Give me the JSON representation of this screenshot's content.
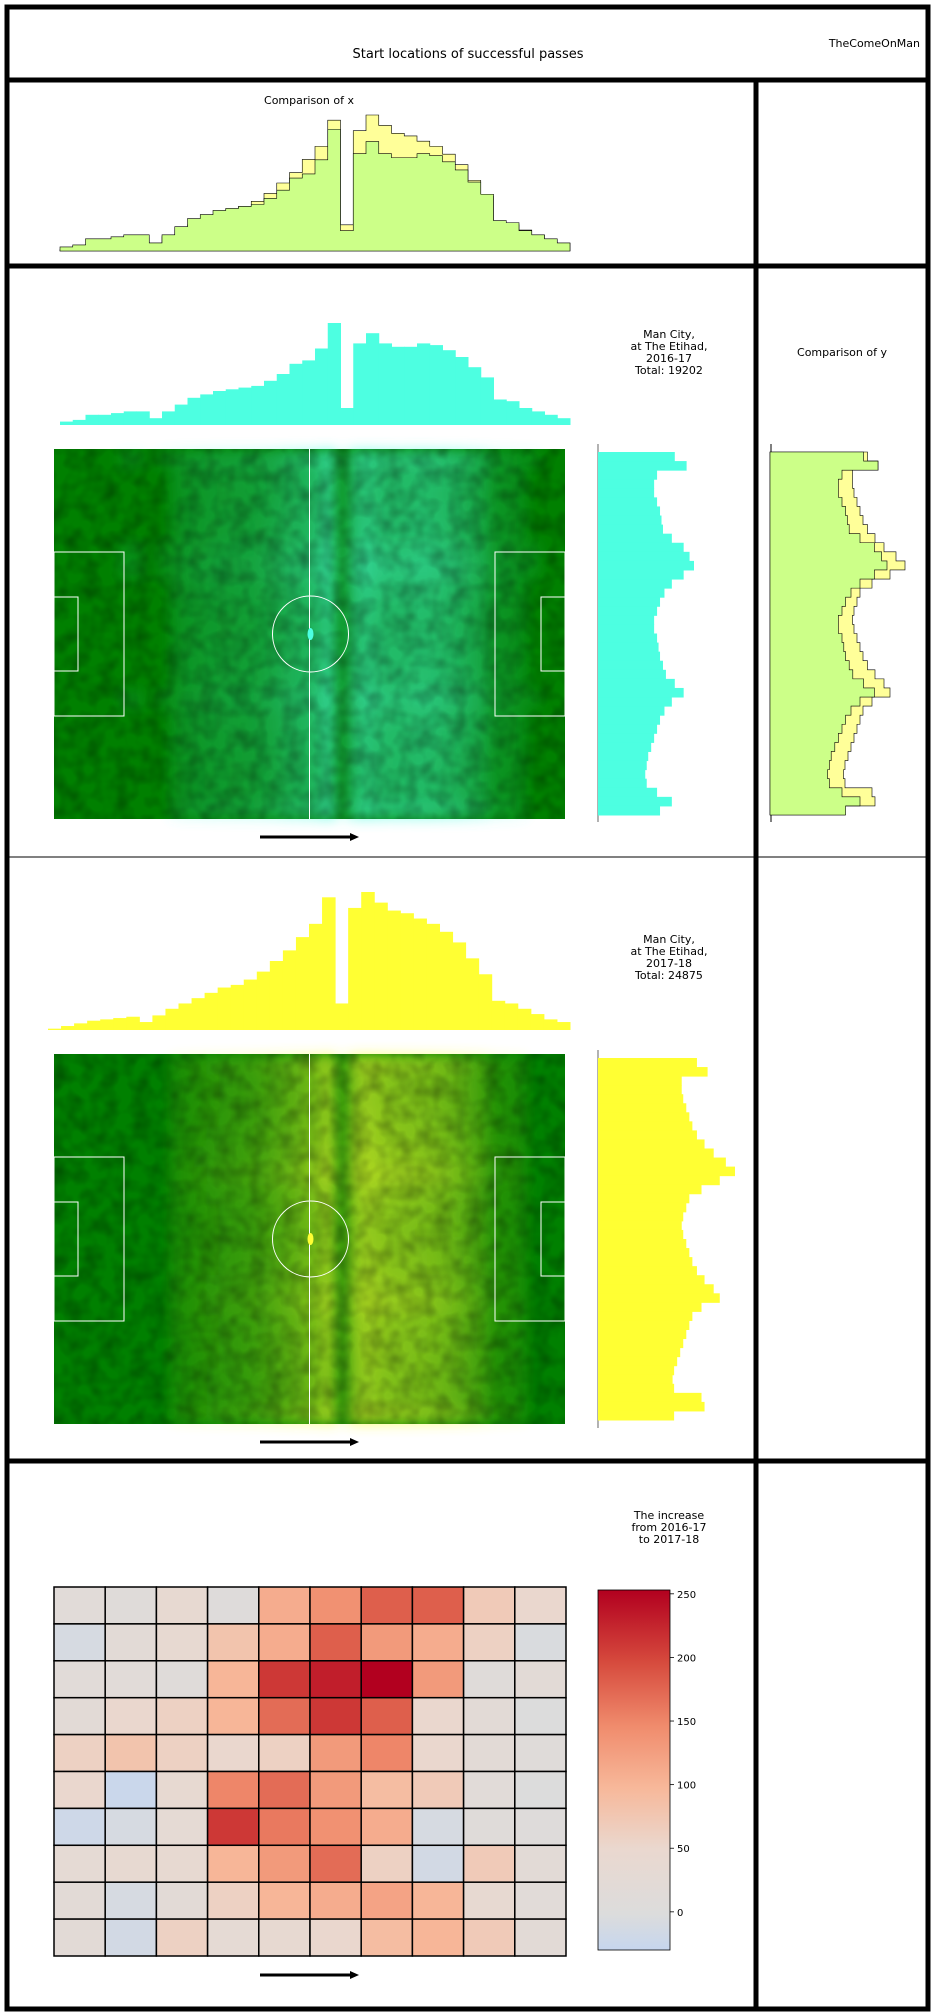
{
  "header": {
    "title": "Start locations of successful passes",
    "author": "TheComeOnMan"
  },
  "colors": {
    "season_2016_17": "#4dffe1",
    "season_2017_18": "#ffff33",
    "overlap": "#ccff88",
    "comparison_light_yellow": "#ffff99",
    "pitch": "#008000",
    "pitch_lines": "#ffffff"
  },
  "chart_data": [
    {
      "type": "area",
      "title": "Comparison of x",
      "description_series": [
        "Man City, at The Etihad, 2016-17",
        "Man City, at The Etihad, 2017-18"
      ],
      "bins": 40,
      "series": [
        {
          "values": [
            2,
            3,
            6,
            6,
            7,
            8,
            8,
            4,
            8,
            12,
            16,
            18,
            20,
            21,
            22,
            23,
            26,
            30,
            36,
            38,
            45,
            60,
            10,
            48,
            54,
            48,
            46,
            46,
            48,
            47,
            44,
            40,
            34,
            28,
            15,
            14,
            10,
            8,
            6,
            4
          ]
        },
        {
          "values": [
            2,
            3,
            5,
            6,
            6,
            8,
            9,
            5,
            9,
            13,
            17,
            19,
            21,
            24,
            26,
            30,
            34,
            38,
            46,
            52,
            60,
            72,
            12,
            62,
            72,
            64,
            62,
            60,
            56,
            54,
            50,
            44,
            38,
            30,
            18,
            16,
            12,
            10,
            7,
            5
          ]
        }
      ]
    },
    {
      "type": "area",
      "title": "Comparison of y",
      "bins": 40,
      "orientation": "horizontal"
    },
    {
      "type": "heatmap",
      "label": "Man City,\nat The Etihad,\n2016-17\nTotal: 19202",
      "label_lines": [
        "Man City,",
        "at The Etihad,",
        "2016-17",
        "Total: 19202"
      ],
      "x_hist": [
        2,
        3,
        6,
        6,
        7,
        8,
        8,
        4,
        8,
        12,
        16,
        18,
        20,
        21,
        22,
        23,
        26,
        30,
        36,
        38,
        45,
        60,
        10,
        48,
        54,
        48,
        46,
        46,
        48,
        47,
        44,
        40,
        34,
        28,
        15,
        14,
        10,
        8,
        6,
        4
      ],
      "y_hist": [
        52,
        60,
        40,
        38,
        38,
        40,
        42,
        43,
        44,
        50,
        58,
        62,
        65,
        58,
        50,
        45,
        42,
        40,
        38,
        38,
        40,
        41,
        42,
        44,
        46,
        52,
        58,
        50,
        45,
        42,
        40,
        38,
        36,
        34,
        33,
        32,
        33,
        40,
        50,
        42
      ]
    },
    {
      "type": "heatmap",
      "label": "Man City,\nat The Etihad,\n2017-18\nTotal: 24875",
      "label_lines": [
        "Man City,",
        "at The Etihad,",
        "2017-18",
        "Total: 24875"
      ],
      "x_hist": [
        1,
        3,
        5,
        7,
        8,
        9,
        10,
        6,
        11,
        16,
        20,
        24,
        28,
        32,
        34,
        38,
        44,
        52,
        60,
        70,
        80,
        100,
        20,
        92,
        104,
        96,
        90,
        88,
        84,
        80,
        74,
        66,
        54,
        42,
        22,
        20,
        16,
        12,
        8,
        6
      ],
      "y_hist": [
        65,
        72,
        55,
        55,
        56,
        58,
        60,
        62,
        65,
        70,
        76,
        84,
        90,
        80,
        68,
        60,
        58,
        56,
        55,
        56,
        58,
        60,
        62,
        65,
        70,
        76,
        80,
        68,
        62,
        60,
        58,
        56,
        54,
        52,
        50,
        49,
        50,
        68,
        70,
        50
      ]
    },
    {
      "type": "heatmap",
      "title": "The increase from 2016-17 to 2017-18",
      "title_lines": [
        "The increase",
        "from 2016-17",
        "to 2017-18"
      ],
      "rows": 10,
      "cols": 10,
      "colorbar": {
        "ticks": [
          0,
          50,
          100,
          150,
          200,
          250
        ],
        "min": -30,
        "max": 253
      },
      "values": [
        [
          15,
          10,
          40,
          5,
          110,
          140,
          180,
          180,
          70,
          50
        ],
        [
          -10,
          20,
          40,
          80,
          110,
          180,
          130,
          110,
          60,
          -5
        ],
        [
          15,
          15,
          10,
          100,
          210,
          230,
          253,
          130,
          10,
          20
        ],
        [
          20,
          50,
          60,
          100,
          170,
          210,
          180,
          50,
          20,
          0
        ],
        [
          60,
          80,
          60,
          50,
          60,
          130,
          150,
          50,
          20,
          10
        ],
        [
          50,
          -25,
          40,
          150,
          170,
          130,
          90,
          70,
          15,
          0
        ],
        [
          -20,
          -10,
          30,
          210,
          160,
          140,
          110,
          -10,
          10,
          5
        ],
        [
          30,
          40,
          40,
          100,
          130,
          170,
          60,
          -15,
          70,
          20
        ],
        [
          20,
          -10,
          20,
          60,
          100,
          110,
          120,
          100,
          40,
          15
        ],
        [
          20,
          -15,
          60,
          30,
          40,
          50,
          90,
          100,
          70,
          20
        ]
      ]
    }
  ]
}
